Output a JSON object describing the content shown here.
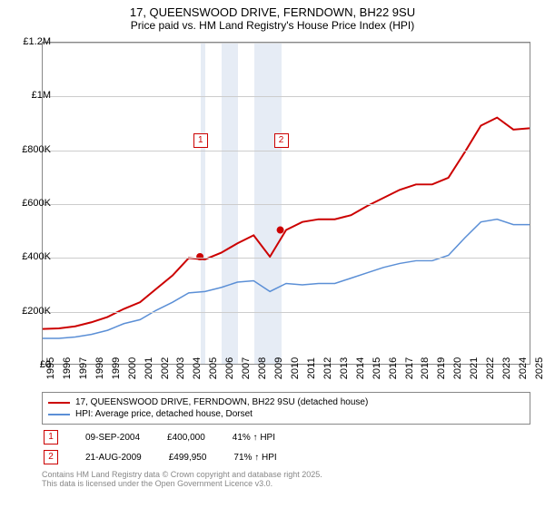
{
  "title": "17, QUEENSWOOD DRIVE, FERNDOWN, BH22 9SU",
  "subtitle": "Price paid vs. HM Land Registry's House Price Index (HPI)",
  "chart": {
    "type": "line",
    "x_years": [
      1995,
      1996,
      1997,
      1998,
      1999,
      2000,
      2001,
      2002,
      2003,
      2004,
      2005,
      2006,
      2007,
      2008,
      2009,
      2010,
      2011,
      2012,
      2013,
      2014,
      2015,
      2016,
      2017,
      2018,
      2019,
      2020,
      2021,
      2022,
      2023,
      2024,
      2025
    ],
    "ylim": [
      0,
      1200000
    ],
    "ytick_step": 200000,
    "ytick_labels": [
      "£0",
      "£200K",
      "£400K",
      "£600K",
      "£800K",
      "£1M",
      "£1.2M"
    ],
    "background_color": "#ffffff",
    "grid_color": "#cccccc",
    "border_color": "#888888",
    "band_color": "#e6ecf5",
    "bands": [
      {
        "from": 2004.69,
        "to": 2005
      },
      {
        "from": 2006,
        "to": 2007
      },
      {
        "from": 2008,
        "to": 2009
      },
      {
        "from": 2009,
        "to": 2009.64
      }
    ],
    "series": [
      {
        "name": "price_paid",
        "label": "17, QUEENSWOOD DRIVE, FERNDOWN, BH22 9SU (detached house)",
        "color": "#cc0000",
        "line_width": 2,
        "values": [
          130000,
          132000,
          140000,
          155000,
          175000,
          205000,
          230000,
          280000,
          330000,
          395000,
          390000,
          415000,
          450000,
          480000,
          400000,
          500000,
          530000,
          540000,
          540000,
          555000,
          590000,
          620000,
          650000,
          670000,
          670000,
          695000,
          790000,
          890000,
          920000,
          875000,
          880000
        ]
      },
      {
        "name": "hpi",
        "label": "HPI: Average price, detached house, Dorset",
        "color": "#5b8fd6",
        "line_width": 1.5,
        "values": [
          95000,
          95000,
          100000,
          110000,
          125000,
          150000,
          165000,
          200000,
          230000,
          265000,
          270000,
          285000,
          305000,
          310000,
          270000,
          300000,
          295000,
          300000,
          300000,
          320000,
          340000,
          360000,
          375000,
          385000,
          385000,
          405000,
          470000,
          530000,
          540000,
          520000,
          520000
        ]
      }
    ],
    "markers": [
      {
        "id": "1",
        "year": 2004.69,
        "box_y": 0.72
      },
      {
        "id": "2",
        "year": 2009.64,
        "box_y": 0.72
      }
    ],
    "dots": [
      {
        "year": 2004.69,
        "value": 400000
      },
      {
        "year": 2009.64,
        "value": 499950
      }
    ]
  },
  "legend": {
    "series1_color": "#cc0000",
    "series2_color": "#5b8fd6"
  },
  "annotations": [
    {
      "id": "1",
      "date": "09-SEP-2004",
      "price": "£400,000",
      "pct": "41% ↑ HPI"
    },
    {
      "id": "2",
      "date": "21-AUG-2009",
      "price": "£499,950",
      "pct": "71% ↑ HPI"
    }
  ],
  "footer": {
    "line1": "Contains HM Land Registry data © Crown copyright and database right 2025.",
    "line2": "This data is licensed under the Open Government Licence v3.0."
  }
}
